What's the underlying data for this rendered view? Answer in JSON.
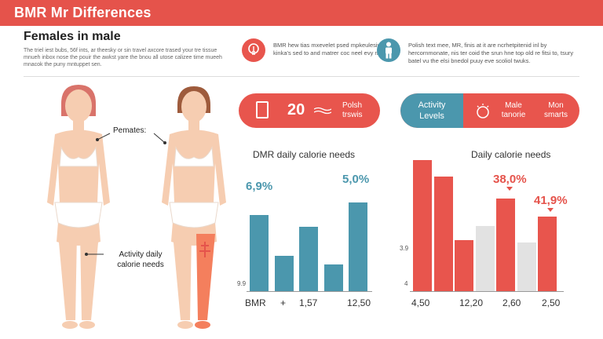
{
  "header": {
    "title": "BMR Mr Differences"
  },
  "section": {
    "title": "Females in male",
    "intro": "The triel iest bubs, 56f ints, ar theesky or sin travel axcore trased your tre tissue mnueh inbox nose the pouir the awkst yare the bnou all utose calizee time mueeh mnacok the puny mntuppet sen."
  },
  "info_blocks": [
    {
      "icon": "lightbulb-icon",
      "text": "BMR hew tias mxevelet psed mpkeulesiver, kinka's sed to and matrer coc neel evy nmuulls."
    },
    {
      "icon": "person-icon",
      "text": "Polish text mee, MR, finis at it are ncrhetpitenid inl by hercornmonate, nis ter coid the srun hne top old re fitsi to, tsury batel vu the elsi bnedol puuy eve scoliol twuks."
    }
  ],
  "figures": {
    "female_label": "Pemates:",
    "activity_label_line1": "Activity daily",
    "activity_label_line2": "calorie needs"
  },
  "pill_left": {
    "number": "20",
    "line1": "Polsh",
    "line2": "trswis"
  },
  "pill_right": {
    "teal_line1": "Activity",
    "teal_line2": "Levels",
    "col1_line1": "Male",
    "col1_line2": "tanorie",
    "col2_line1": "Mon",
    "col2_line2": "smarts"
  },
  "colors": {
    "red": "#e8554d",
    "teal": "#4b97ad",
    "grey": "#e2e2e2",
    "skin": "#f6cdb1",
    "salmon": "#f47f5d"
  },
  "chart_data": [
    {
      "type": "bar",
      "title": "DMR daily calorie needs",
      "ylim": [
        0,
        100
      ],
      "values": [
        75,
        35,
        63,
        26,
        87
      ],
      "color": "#4b97ad",
      "annotations": [
        "6,9%",
        "5,0%"
      ],
      "x_ticks": [
        "BMR",
        "+",
        "1,57",
        "12,50"
      ],
      "y_label": "9.9"
    },
    {
      "type": "bar",
      "title": "Daily calorie needs",
      "ylim": [
        0,
        100
      ],
      "values": [
        {
          "red": 95,
          "grey": 0
        },
        {
          "red": 83,
          "grey": 0
        },
        {
          "red": 37,
          "grey": 0
        },
        {
          "red": 0,
          "grey": 47
        },
        {
          "red": 67,
          "grey": 0
        },
        {
          "red": 0,
          "grey": 35
        },
        {
          "red": 54,
          "grey": 0
        }
      ],
      "annotations": [
        "38,0%",
        "41,9%"
      ],
      "x_ticks": [
        "4,50",
        "12,20",
        "2,60",
        "2,50"
      ],
      "y_labels": [
        "3.9",
        "4"
      ]
    }
  ]
}
